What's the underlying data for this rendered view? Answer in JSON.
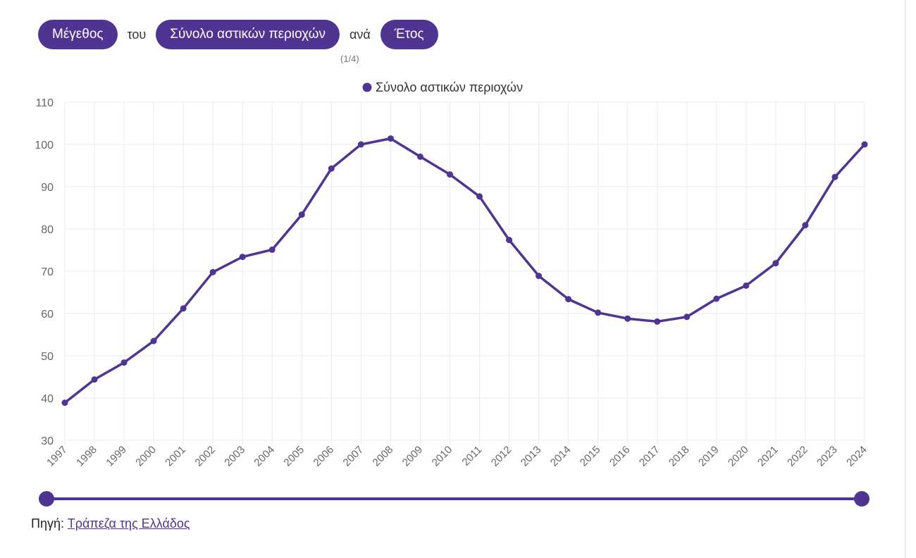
{
  "controls": {
    "measure": "Μέγεθος",
    "of_word": "του",
    "area": "Σύνολο αστικών περιοχών",
    "by_word": "ανά",
    "dimension": "Έτος",
    "page_indicator": "(1/4)"
  },
  "source": {
    "label": "Πηγή:",
    "link_text": "Τράπεζα της Ελλάδος"
  },
  "colors": {
    "accent": "#4f3591",
    "grid": "#ebebeb",
    "tick_text": "#666666"
  },
  "chart_data": {
    "type": "line",
    "legend_position": "top-center",
    "grid": true,
    "ylim": [
      30,
      110
    ],
    "yticks": [
      30,
      40,
      50,
      60,
      70,
      80,
      90,
      100,
      110
    ],
    "categories": [
      "1997",
      "1998",
      "1999",
      "2000",
      "2001",
      "2002",
      "2003",
      "2004",
      "2005",
      "2006",
      "2007",
      "2008",
      "2009",
      "2010",
      "2011",
      "2012",
      "2013",
      "2014",
      "2015",
      "2016",
      "2017",
      "2018",
      "2019",
      "2020",
      "2021",
      "2022",
      "2023",
      "2024"
    ],
    "series": [
      {
        "name": "Σύνολο αστικών περιοχών",
        "color": "#4f3591",
        "values": [
          38.9,
          44.4,
          48.4,
          53.5,
          61.2,
          69.8,
          73.4,
          75.1,
          83.4,
          94.3,
          100.0,
          101.4,
          97.1,
          92.9,
          87.7,
          77.4,
          68.9,
          63.4,
          60.2,
          58.8,
          58.1,
          59.2,
          63.5,
          66.6,
          71.9,
          80.9,
          92.3,
          100.0
        ]
      }
    ]
  }
}
